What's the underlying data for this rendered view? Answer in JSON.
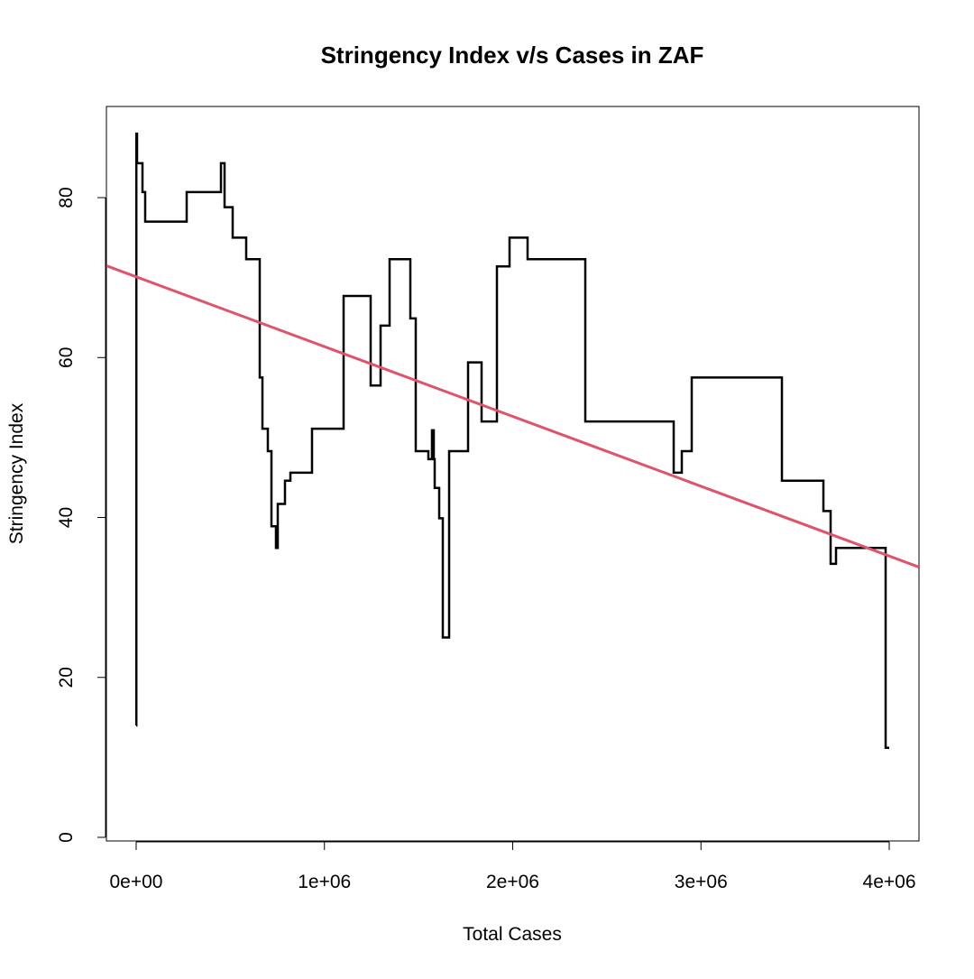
{
  "chart_data": {
    "type": "line",
    "step": true,
    "title": "Stringency Index v/s Cases in ZAF",
    "x_label": "Total Cases",
    "y_label": "Stringency Index",
    "xlim": [
      -158000,
      4158000
    ],
    "ylim": [
      -0.45,
      91.4
    ],
    "xticks": [
      {
        "value": 0,
        "label": "0e+00"
      },
      {
        "value": 1000000,
        "label": "1e+06"
      },
      {
        "value": 2000000,
        "label": "2e+06"
      },
      {
        "value": 3000000,
        "label": "3e+06"
      },
      {
        "value": 4000000,
        "label": "4e+06"
      }
    ],
    "yticks": [
      0,
      20,
      40,
      60,
      80
    ],
    "series": [
      {
        "color": "#000000",
        "x": [
          0,
          1000,
          4790,
          33500,
          47900,
          268300,
          450300,
          469500,
          512600,
          584400,
          656300,
          670700,
          699400,
          718600,
          742500,
          752100,
          790400,
          819200,
          934100,
          1101800,
          1245500,
          1298200,
          1346100,
          1456300,
          1485000,
          1552100,
          1571200,
          1580800,
          1585600,
          1609600,
          1628700,
          1662300,
          1762900,
          1834700,
          1916200,
          1983200,
          2079000,
          2385600,
          2855100,
          2898200,
          2950900,
          3429900,
          3650300,
          3688600,
          3717300,
          3980800,
          3999900
        ],
        "values": [
          14,
          88,
          84.3,
          80.7,
          77,
          80.7,
          84.3,
          78.8,
          75,
          72.3,
          57.5,
          51.1,
          48.3,
          38.9,
          36.2,
          41.7,
          44.6,
          45.6,
          51.1,
          67.7,
          56.5,
          64,
          72.3,
          64.9,
          48.3,
          47.3,
          50.9,
          47.3,
          43.7,
          39.9,
          25,
          48.3,
          59.4,
          52,
          71.4,
          75,
          72.3,
          52,
          45.6,
          48.3,
          57.5,
          44.6,
          40.8,
          34.2,
          36.2,
          11.2,
          11.2
        ]
      }
    ],
    "trend": {
      "intercept": 70.1,
      "slope": -8.73e-06,
      "color": "#df536b"
    }
  }
}
